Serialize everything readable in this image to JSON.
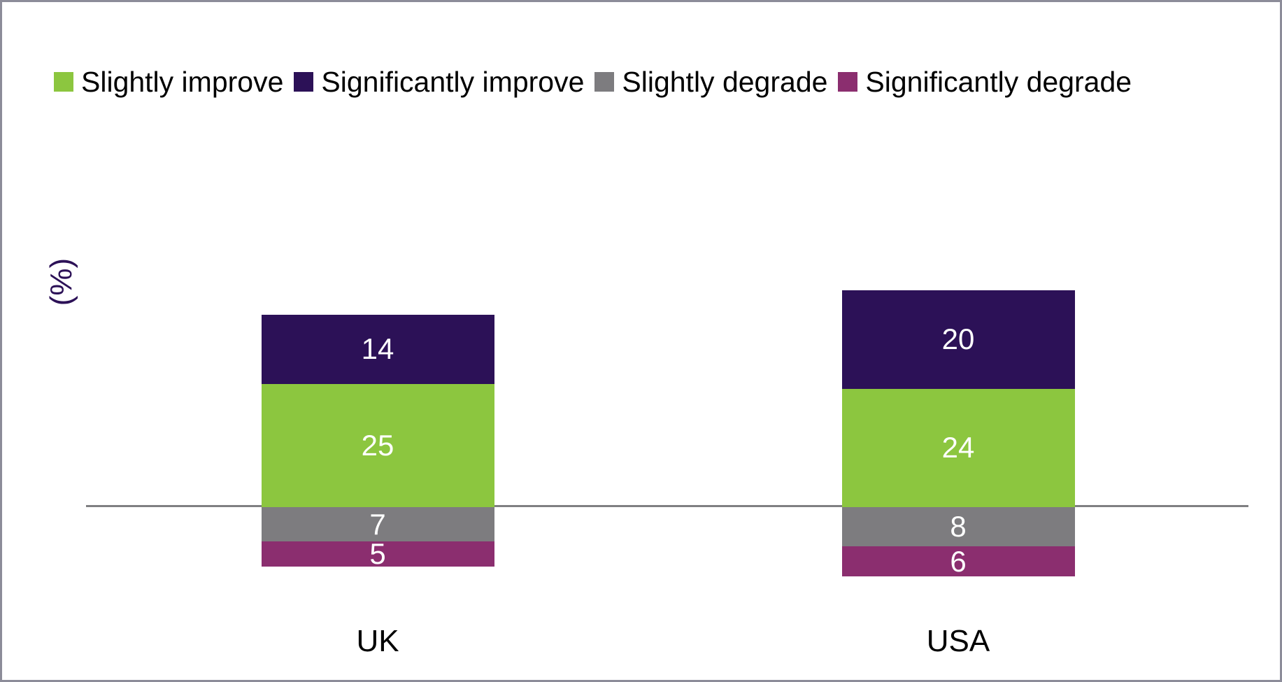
{
  "chart_data": {
    "type": "bar",
    "subtype": "diverging-stacked-column",
    "title": "",
    "xlabel": "",
    "ylabel": "(%)",
    "categories": [
      "UK",
      "USA"
    ],
    "series": [
      {
        "key": "slightly-improve",
        "name": "Slightly improve",
        "color": "#8CC63F",
        "stack": "up",
        "values": [
          25,
          24
        ]
      },
      {
        "key": "significantly-improve",
        "name": "Significantly improve",
        "color": "#2C1157",
        "stack": "up",
        "values": [
          14,
          20
        ]
      },
      {
        "key": "slightly-degrade",
        "name": "Slightly degrade",
        "color": "#7D7C7F",
        "stack": "down",
        "values": [
          7,
          8
        ]
      },
      {
        "key": "significantly-degrade",
        "name": "Significantly degrade",
        "color": "#8B2E6F",
        "stack": "down",
        "values": [
          5,
          6
        ]
      }
    ],
    "totals": {
      "up": [
        39,
        44
      ],
      "down": [
        12,
        14
      ]
    },
    "ylim": [
      -16,
      52
    ],
    "grid": false,
    "legend_position": "top-left",
    "axis_line_color": "#7F7F82",
    "value_label_color": "#FFFFFF",
    "frame_border_color": "#8C8C99"
  }
}
